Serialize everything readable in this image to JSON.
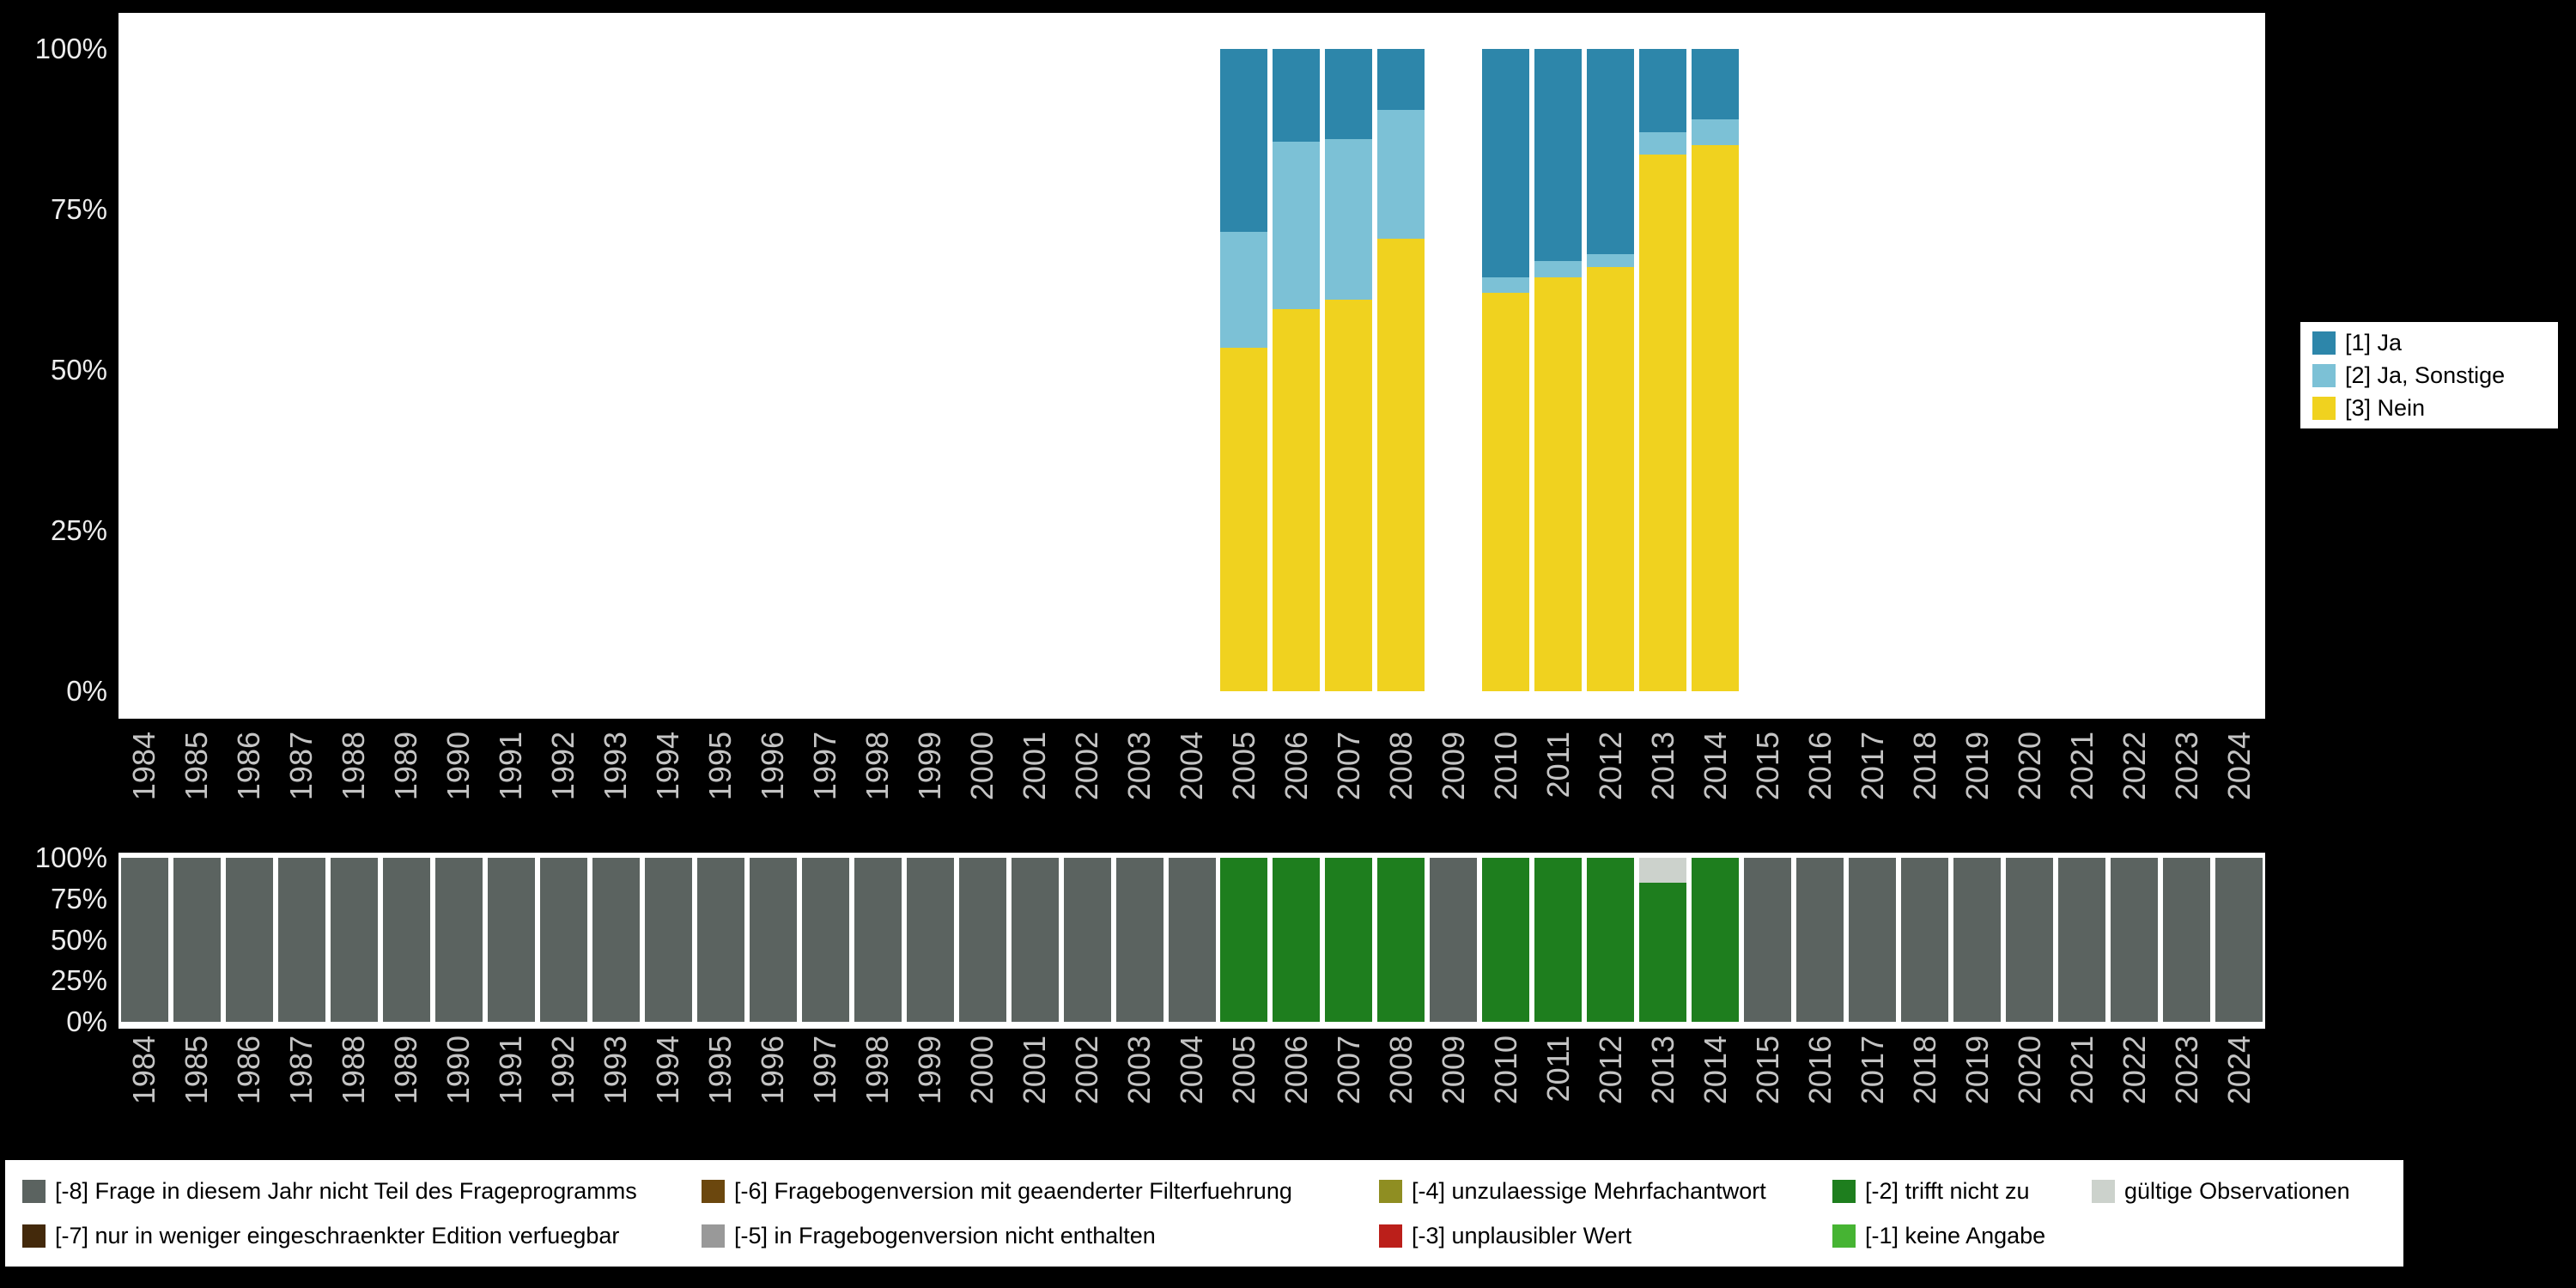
{
  "page": {
    "background": "#000000",
    "plot_background": "#ffffff",
    "axis_text_color": "#c4c4c4",
    "y_axis_text_color": "#ededed"
  },
  "top_legend": {
    "items": [
      {
        "label": "[1] Ja",
        "color": "#2d86aa"
      },
      {
        "label": "[2] Ja, Sonstige",
        "color": "#7cc1d6"
      },
      {
        "label": "[3] Nein",
        "color": "#f0d21f"
      }
    ]
  },
  "bottom_legend": {
    "items": [
      {
        "label": "[-8] Frage in diesem Jahr nicht Teil des Frageprogramms",
        "color": "#5b6360"
      },
      {
        "label": "[-6] Fragebogenversion mit geaenderter Filterfuehrung",
        "color": "#6b470e"
      },
      {
        "label": "[-4] unzulaessige Mehrfachantwort",
        "color": "#8f8e22"
      },
      {
        "label": "[-2] trifft nicht zu",
        "color": "#1e7e1e"
      },
      {
        "label": "gültige Observationen",
        "color": "#ccd2cc"
      },
      {
        "label": "[-7] nur in weniger eingeschraenkter Edition verfuegbar",
        "color": "#43290b"
      },
      {
        "label": "[-5] in Fragebogenversion nicht enthalten",
        "color": "#999999"
      },
      {
        "label": "[-3] unplausibler Wert",
        "color": "#bb1f1a"
      },
      {
        "label": "[-1] keine Angabe",
        "color": "#46b433"
      }
    ]
  },
  "chart_data": [
    {
      "type": "bar",
      "stacked": true,
      "title": "",
      "xlabel": "",
      "ylabel": "",
      "ylim": [
        0,
        100
      ],
      "grid": false,
      "legend_position": "right",
      "y_ticks": [
        "100%",
        "75%",
        "50%",
        "25%",
        "0%"
      ],
      "categories": [
        "1984",
        "1985",
        "1986",
        "1987",
        "1988",
        "1989",
        "1990",
        "1991",
        "1992",
        "1993",
        "1994",
        "1995",
        "1996",
        "1997",
        "1998",
        "1999",
        "2000",
        "2001",
        "2002",
        "2003",
        "2004",
        "2005",
        "2006",
        "2007",
        "2008",
        "2009",
        "2010",
        "2011",
        "2012",
        "2013",
        "2014",
        "2015",
        "2016",
        "2017",
        "2018",
        "2019",
        "2020",
        "2021",
        "2022",
        "2023",
        "2024"
      ],
      "series": [
        {
          "name": "[1] Ja",
          "color": "#2d86aa",
          "values": {
            "2005": 28.5,
            "2006": 14.5,
            "2007": 14,
            "2008": 9.5,
            "2010": 35.5,
            "2011": 33,
            "2012": 32,
            "2013": 13,
            "2014": 11
          }
        },
        {
          "name": "[2] Ja, Sonstige",
          "color": "#7cc1d6",
          "values": {
            "2005": 18,
            "2006": 26,
            "2007": 25,
            "2008": 20,
            "2010": 2.5,
            "2011": 2.5,
            "2012": 2,
            "2013": 3.5,
            "2014": 4
          }
        },
        {
          "name": "[3] Nein",
          "color": "#f0d21f",
          "values": {
            "2005": 53.5,
            "2006": 59.5,
            "2007": 61,
            "2008": 70.5,
            "2010": 62,
            "2011": 64.5,
            "2012": 66,
            "2013": 83.5,
            "2014": 85
          }
        }
      ]
    },
    {
      "type": "bar",
      "stacked": true,
      "title": "",
      "xlabel": "",
      "ylabel": "",
      "ylim": [
        0,
        100
      ],
      "grid": false,
      "legend_position": "bottom",
      "y_ticks": [
        "100%",
        "75%",
        "50%",
        "25%",
        "0%"
      ],
      "categories": [
        "1984",
        "1985",
        "1986",
        "1987",
        "1988",
        "1989",
        "1990",
        "1991",
        "1992",
        "1993",
        "1994",
        "1995",
        "1996",
        "1997",
        "1998",
        "1999",
        "2000",
        "2001",
        "2002",
        "2003",
        "2004",
        "2005",
        "2006",
        "2007",
        "2008",
        "2009",
        "2010",
        "2011",
        "2012",
        "2013",
        "2014",
        "2015",
        "2016",
        "2017",
        "2018",
        "2019",
        "2020",
        "2021",
        "2022",
        "2023",
        "2024"
      ],
      "series": [
        {
          "name": "gültige Observationen",
          "color": "#ccd2cc",
          "values": {
            "2013": 15
          }
        },
        {
          "name": "[-2] trifft nicht zu",
          "color": "#1e7e1e",
          "values": {
            "2005": 100,
            "2006": 100,
            "2007": 100,
            "2008": 100,
            "2010": 100,
            "2011": 100,
            "2012": 100,
            "2013": 85,
            "2014": 100
          }
        },
        {
          "name": "[-8] Frage in diesem Jahr nicht Teil des Frageprogramms",
          "color": "#5b6360",
          "values": {
            "1984": 100,
            "1985": 100,
            "1986": 100,
            "1987": 100,
            "1988": 100,
            "1989": 100,
            "1990": 100,
            "1991": 100,
            "1992": 100,
            "1993": 100,
            "1994": 100,
            "1995": 100,
            "1996": 100,
            "1997": 100,
            "1998": 100,
            "1999": 100,
            "2000": 100,
            "2001": 100,
            "2002": 100,
            "2003": 100,
            "2004": 100,
            "2009": 100,
            "2015": 100,
            "2016": 100,
            "2017": 100,
            "2018": 100,
            "2019": 100,
            "2020": 100,
            "2021": 100,
            "2022": 100,
            "2023": 100,
            "2024": 100
          }
        }
      ]
    }
  ]
}
